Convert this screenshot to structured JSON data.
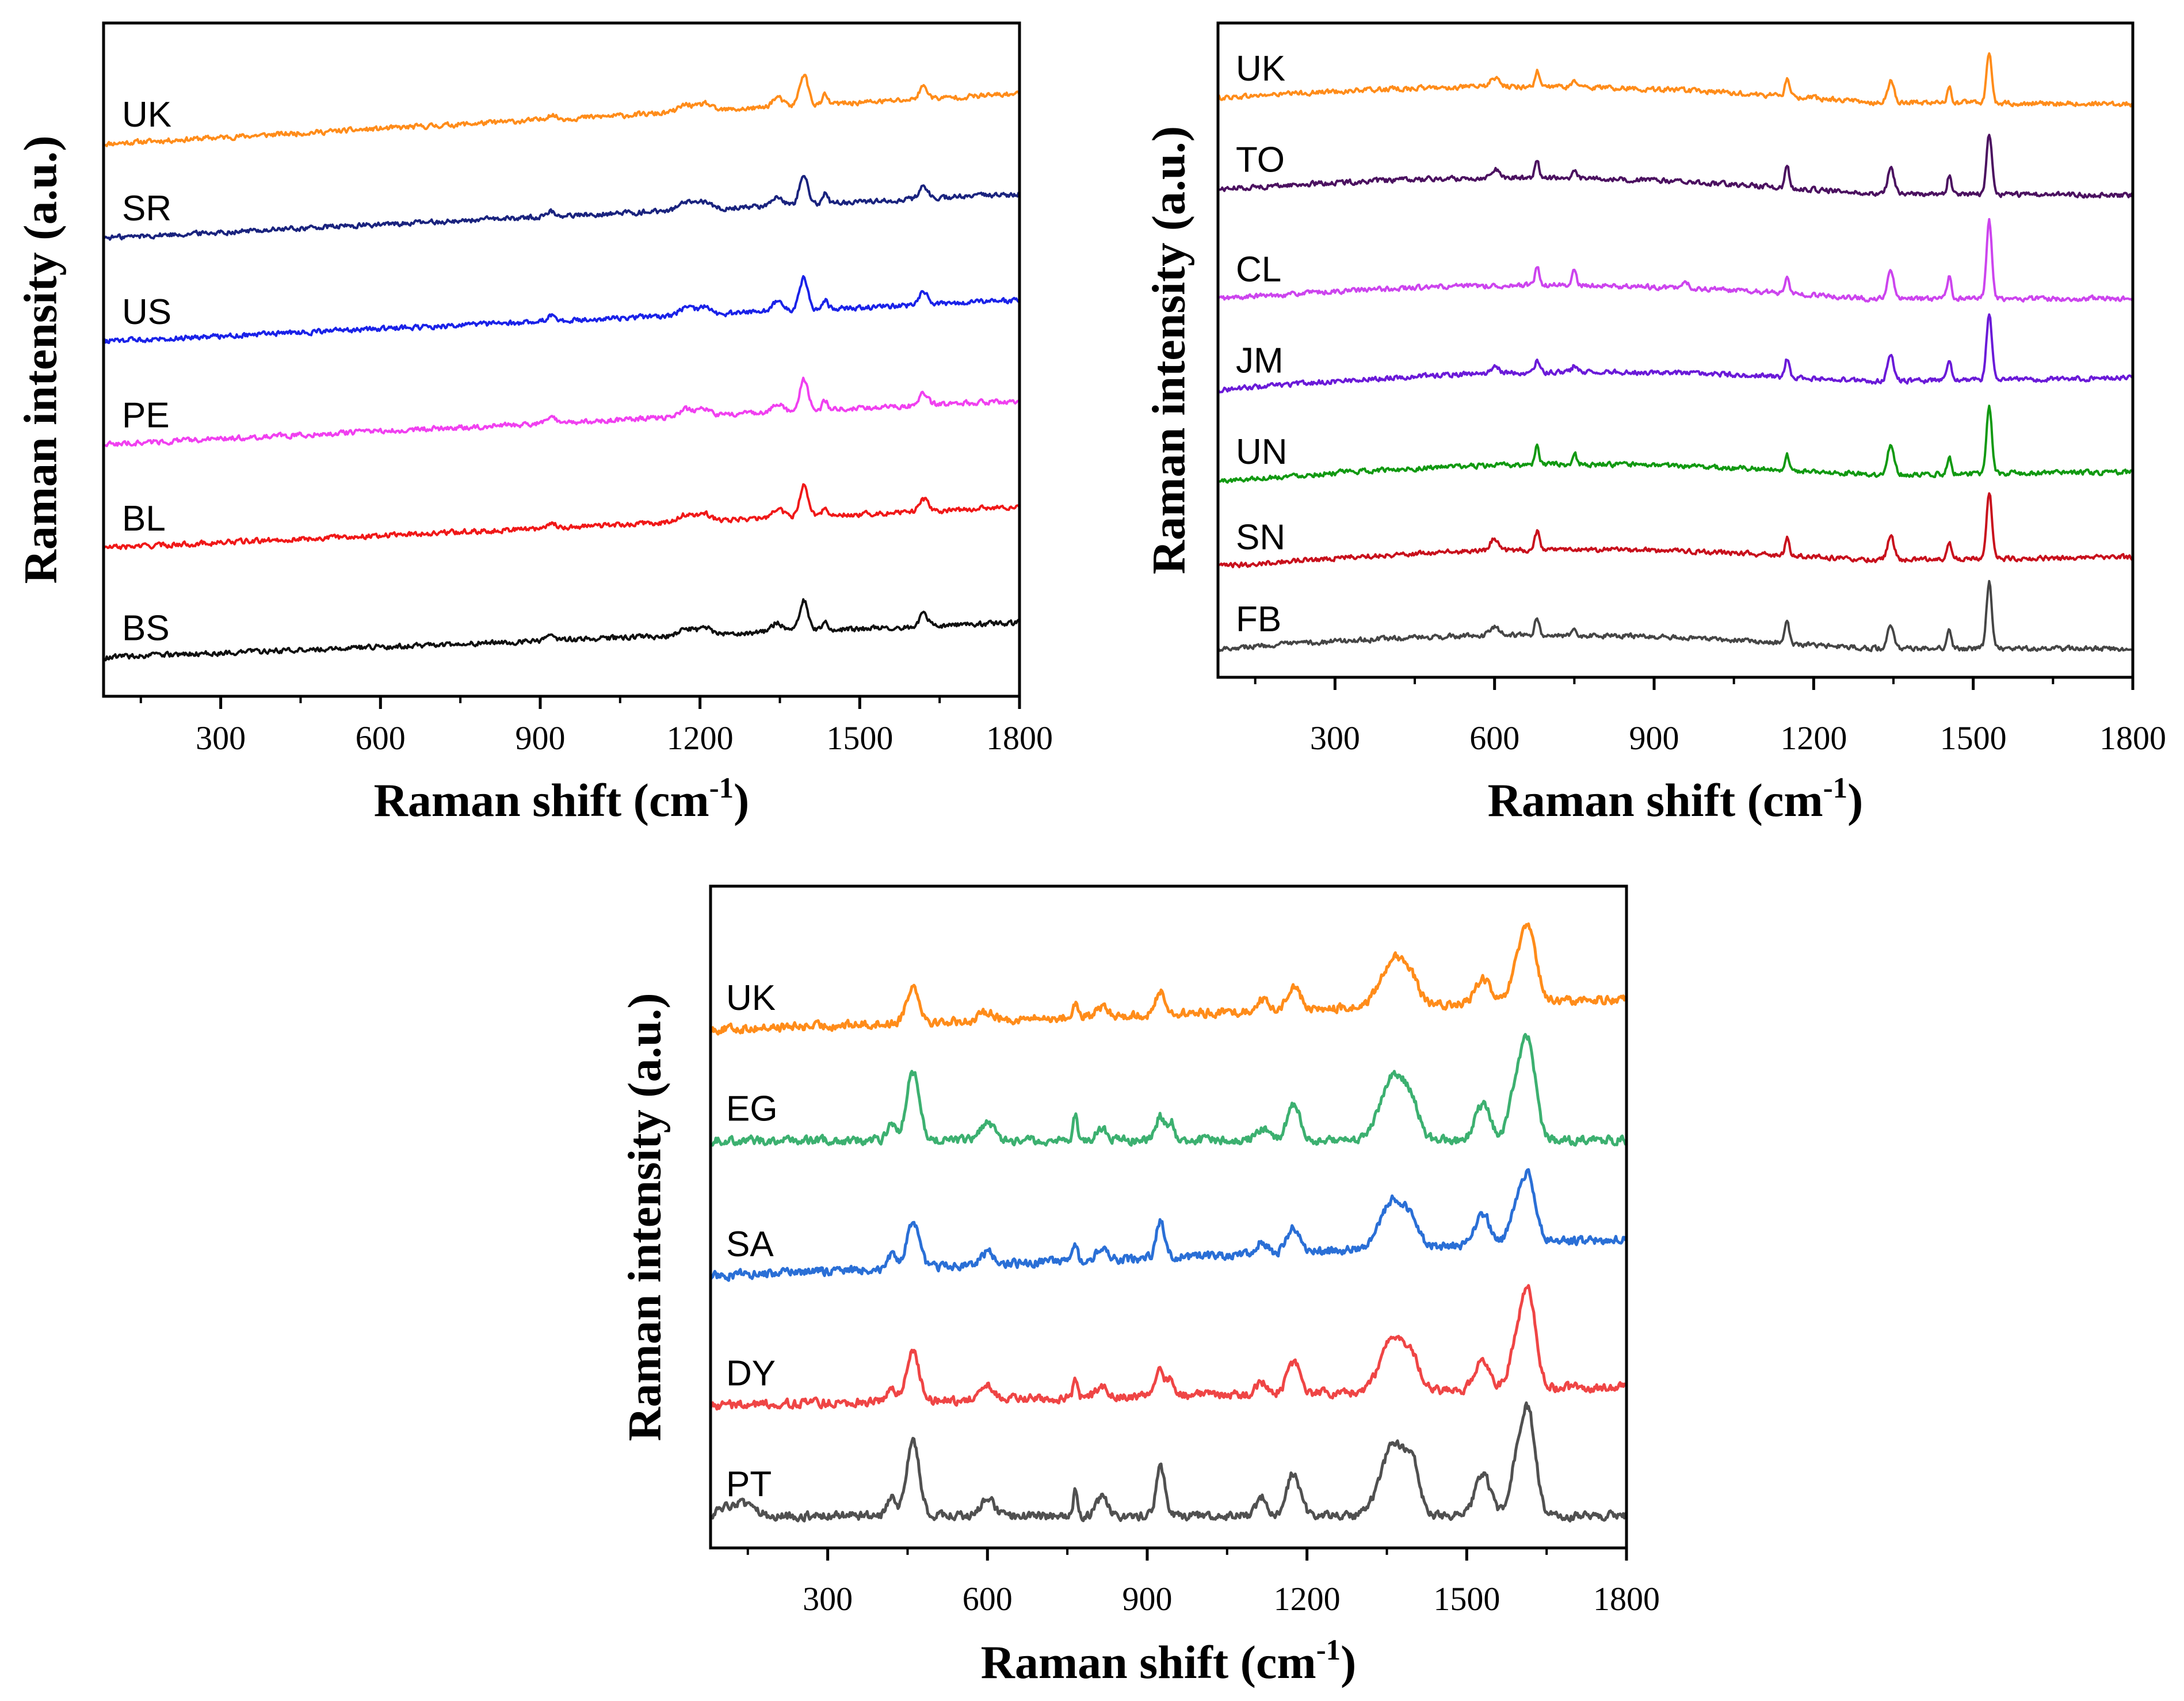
{
  "figure": {
    "colors": {
      "orange": "#ff8c1a",
      "navy": "#1a237e",
      "blue": "#1a22e8",
      "magenta": "#f040f0",
      "red": "#f01818",
      "black": "#101010",
      "purple": "#4b1160",
      "violet": "#cc44ee",
      "indigo": "#6a1ad8",
      "green": "#119911",
      "crimson": "#c8101c",
      "gray": "#454545",
      "teal_green": "#3cb070",
      "sky_blue": "#2a6fd6",
      "light_red": "#ef4545",
      "dark_gray": "#505050"
    }
  },
  "chart_data": [
    {
      "id": "panel-top-left",
      "type": "line",
      "title": "",
      "xlabel": "Raman shift (cm",
      "xlabel_sup": "-1",
      "xlabel_close": ")",
      "ylabel": "Raman intensity (a.u.)",
      "xlim": [
        80,
        1800
      ],
      "ylim": [
        0,
        100
      ],
      "xticks": [
        300,
        600,
        900,
        1200,
        1500,
        1800
      ],
      "xtick_labels": [
        "300",
        "600",
        "900",
        "1200",
        "1500",
        "1800"
      ],
      "yticks": [],
      "legend": "inline labels at left",
      "series": [
        {
          "name": "UK",
          "color": "orange",
          "base_start": 85,
          "base_end": 93,
          "peaks": [
            [
              1395,
              5,
              8
            ],
            [
              1435,
              1.5,
              5
            ],
            [
              1620,
              2,
              8
            ],
            [
              1175,
              1.2,
              14
            ],
            [
              1210,
              1.2,
              10
            ],
            [
              920,
              0.8,
              8
            ],
            [
              1345,
              1.5,
              10
            ]
          ]
        },
        {
          "name": "SR",
          "color": "navy",
          "base_start": 70,
          "base_end": 77,
          "peaks": [
            [
              1395,
              5,
              8
            ],
            [
              1435,
              1.5,
              5
            ],
            [
              1620,
              2,
              8
            ],
            [
              1175,
              1.2,
              14
            ],
            [
              1210,
              1.2,
              10
            ],
            [
              920,
              0.8,
              8
            ],
            [
              1345,
              1.5,
              10
            ]
          ]
        },
        {
          "name": "US",
          "color": "blue",
          "base_start": 53.5,
          "base_end": 60,
          "peaks": [
            [
              1395,
              5,
              8
            ],
            [
              1435,
              1.5,
              5
            ],
            [
              1620,
              2,
              8
            ],
            [
              1175,
              1.2,
              14
            ],
            [
              1210,
              1.2,
              10
            ],
            [
              920,
              0.8,
              8
            ],
            [
              1345,
              1.5,
              10
            ]
          ]
        },
        {
          "name": "PE",
          "color": "magenta",
          "base_start": 37,
          "base_end": 44,
          "peaks": [
            [
              1395,
              5,
              8
            ],
            [
              1435,
              1.5,
              5
            ],
            [
              1620,
              2,
              8
            ],
            [
              1175,
              1.2,
              14
            ],
            [
              1210,
              1.2,
              10
            ],
            [
              920,
              0.8,
              8
            ],
            [
              1345,
              1.5,
              10
            ]
          ]
        },
        {
          "name": "BL",
          "color": "red",
          "base_start": 20.5,
          "base_end": 27,
          "peaks": [
            [
              1395,
              5,
              8
            ],
            [
              1435,
              1.5,
              5
            ],
            [
              1620,
              2,
              8
            ],
            [
              1175,
              1.2,
              14
            ],
            [
              1210,
              1.2,
              10
            ],
            [
              920,
              0.8,
              8
            ],
            [
              1345,
              1.5,
              10
            ]
          ]
        },
        {
          "name": "BS",
          "color": "black",
          "base_start": 3,
          "base_end": 8.5,
          "peaks": [
            [
              1395,
              5,
              8
            ],
            [
              1435,
              1.5,
              5
            ],
            [
              1620,
              2,
              8
            ],
            [
              1175,
              1.2,
              14
            ],
            [
              1210,
              1.2,
              10
            ],
            [
              920,
              0.8,
              8
            ],
            [
              1345,
              1.5,
              10
            ]
          ]
        }
      ]
    },
    {
      "id": "panel-top-right",
      "type": "line",
      "title": "",
      "xlabel": "Raman shift (cm",
      "xlabel_sup": "-1",
      "xlabel_close": ")",
      "ylabel": "Raman intensity (a.u.)",
      "xlim": [
        80,
        1800
      ],
      "ylim": [
        0,
        100
      ],
      "xticks": [
        300,
        600,
        900,
        1200,
        1500,
        1800
      ],
      "xtick_labels": [
        "300",
        "600",
        "900",
        "1200",
        "1500",
        "1800"
      ],
      "yticks": [],
      "legend": "inline labels at left",
      "series": [
        {
          "name": "UK",
          "color": "orange",
          "base_start": 92,
          "base_end": 91,
          "peaks": [
            [
              1530,
              8,
              5
            ],
            [
              1345,
              3.5,
              6
            ],
            [
              1150,
              3,
              4
            ],
            [
              1455,
              2.5,
              4
            ],
            [
              680,
              2.5,
              4
            ],
            [
              600,
              1.5,
              8
            ],
            [
              750,
              1.2,
              4
            ]
          ]
        },
        {
          "name": "TO",
          "color": "purple",
          "base_start": 77,
          "base_end": 76,
          "peaks": [
            [
              1530,
              10,
              5
            ],
            [
              1345,
              4,
              6
            ],
            [
              1150,
              3.5,
              4
            ],
            [
              1455,
              3,
              4
            ],
            [
              680,
              3,
              4
            ],
            [
              600,
              1.5,
              8
            ],
            [
              750,
              1.2,
              4
            ]
          ]
        },
        {
          "name": "CL",
          "color": "violet",
          "base_start": 59,
          "base_end": 59,
          "peaks": [
            [
              1530,
              13,
              5
            ],
            [
              1345,
              4.5,
              6
            ],
            [
              1150,
              3,
              4
            ],
            [
              1455,
              3.5,
              4
            ],
            [
              680,
              3,
              4
            ],
            [
              750,
              2.5,
              4
            ],
            [
              960,
              1.2,
              4
            ]
          ]
        },
        {
          "name": "JM",
          "color": "indigo",
          "base_start": 44,
          "base_end": 46,
          "peaks": [
            [
              1530,
              11,
              5
            ],
            [
              1345,
              4,
              6
            ],
            [
              1150,
              3,
              4
            ],
            [
              1455,
              3,
              4
            ],
            [
              680,
              2,
              4
            ],
            [
              600,
              1,
              8
            ],
            [
              750,
              1,
              4
            ]
          ]
        },
        {
          "name": "UN",
          "color": "green",
          "base_start": 29,
          "base_end": 30.5,
          "peaks": [
            [
              1530,
              11,
              5
            ],
            [
              1345,
              5,
              6
            ],
            [
              1150,
              2.5,
              4
            ],
            [
              1455,
              3,
              4
            ],
            [
              680,
              3,
              4
            ],
            [
              750,
              2,
              4
            ]
          ]
        },
        {
          "name": "SN",
          "color": "crimson",
          "base_start": 15,
          "base_end": 16.5,
          "peaks": [
            [
              1530,
              11,
              5
            ],
            [
              1345,
              4,
              6
            ],
            [
              1150,
              3,
              4
            ],
            [
              1455,
              3,
              4
            ],
            [
              680,
              3,
              5
            ],
            [
              600,
              2,
              8
            ]
          ]
        },
        {
          "name": "FB",
          "color": "gray",
          "base_start": 1.5,
          "base_end": 1.5,
          "peaks": [
            [
              1530,
              11,
              5
            ],
            [
              1345,
              4,
              6
            ],
            [
              1150,
              3.5,
              4
            ],
            [
              1455,
              3,
              4
            ],
            [
              680,
              3,
              4
            ],
            [
              600,
              1.5,
              8
            ],
            [
              750,
              1.2,
              4
            ]
          ]
        }
      ]
    },
    {
      "id": "panel-bottom",
      "type": "line",
      "title": "",
      "xlabel": "Raman shift (cm",
      "xlabel_sup": "-1",
      "xlabel_close": ")",
      "ylabel": "Raman intensity (a.u.)",
      "xlim": [
        80,
        1800
      ],
      "ylim": [
        0,
        100
      ],
      "xticks": [
        300,
        600,
        900,
        1200,
        1500,
        1800
      ],
      "xtick_labels": [
        "300",
        "600",
        "900",
        "1200",
        "1500",
        "1800"
      ],
      "yticks": [],
      "legend": "inline labels at left",
      "series": [
        {
          "name": "UK",
          "color": "orange",
          "base_start": 81,
          "base_end": 86,
          "peaks": [
            [
              460,
              6,
              12
            ],
            [
              1615,
              12,
              15
            ],
            [
              1365,
              8,
              25
            ],
            [
              925,
              4,
              8
            ],
            [
              1175,
              4,
              12
            ],
            [
              1530,
              4,
              14
            ],
            [
              1590,
              3,
              12
            ],
            [
              765,
              2.5,
              4
            ],
            [
              600,
              1.5,
              12
            ],
            [
              815,
              1.5,
              10
            ],
            [
              1115,
              2,
              10
            ],
            [
              1400,
              2,
              12
            ]
          ]
        },
        {
          "name": "EG",
          "color": "teal_green",
          "base_start": 63,
          "base_end": 63,
          "peaks": [
            [
              460,
              11,
              12
            ],
            [
              1615,
              16,
              14
            ],
            [
              1365,
              11,
              25
            ],
            [
              925,
              4,
              8
            ],
            [
              945,
              3,
              6
            ],
            [
              1175,
              6,
              12
            ],
            [
              1530,
              6,
              14
            ],
            [
              1590,
              7,
              12
            ],
            [
              765,
              4,
              4
            ],
            [
              600,
              3,
              12
            ],
            [
              815,
              2,
              10
            ],
            [
              1115,
              2,
              10
            ],
            [
              1400,
              3,
              12
            ],
            [
              420,
              3,
              8
            ]
          ]
        },
        {
          "name": "SA",
          "color": "sky_blue",
          "base_start": 41,
          "base_end": 47,
          "peaks": [
            [
              460,
              7,
              12
            ],
            [
              1615,
              11,
              14
            ],
            [
              1365,
              8,
              25
            ],
            [
              925,
              6,
              8
            ],
            [
              1175,
              4,
              12
            ],
            [
              1530,
              5,
              14
            ],
            [
              1590,
              4,
              12
            ],
            [
              765,
              3,
              4
            ],
            [
              600,
              2,
              12
            ],
            [
              815,
              2,
              10
            ],
            [
              1115,
              2,
              10
            ],
            [
              1400,
              2,
              12
            ],
            [
              420,
              2,
              8
            ]
          ]
        },
        {
          "name": "DY",
          "color": "light_red",
          "base_start": 20,
          "base_end": 23,
          "peaks": [
            [
              460,
              8,
              12
            ],
            [
              1615,
              16,
              14
            ],
            [
              1365,
              9,
              25
            ],
            [
              925,
              4,
              8
            ],
            [
              945,
              3,
              6
            ],
            [
              1175,
              5,
              12
            ],
            [
              1530,
              5,
              14
            ],
            [
              1590,
              5,
              12
            ],
            [
              765,
              3,
              4
            ],
            [
              600,
              2,
              12
            ],
            [
              815,
              2,
              10
            ],
            [
              1115,
              2,
              10
            ],
            [
              1400,
              3,
              12
            ],
            [
              420,
              2,
              8
            ]
          ]
        },
        {
          "name": "PT",
          "color": "dark_gray",
          "base_start": 2,
          "base_end": 2,
          "peaks": [
            [
              460,
              12,
              12
            ],
            [
              1615,
              17,
              14
            ],
            [
              1365,
              12,
              25
            ],
            [
              925,
              8,
              8
            ],
            [
              1175,
              7,
              12
            ],
            [
              1530,
              7,
              14
            ],
            [
              1590,
              6,
              12
            ],
            [
              765,
              4,
              4
            ],
            [
              600,
              3,
              12
            ],
            [
              815,
              3,
              10
            ],
            [
              1115,
              3,
              10
            ],
            [
              1400,
              5,
              12
            ],
            [
              420,
              3,
              8
            ],
            [
              130,
              2,
              25
            ]
          ]
        }
      ]
    }
  ]
}
